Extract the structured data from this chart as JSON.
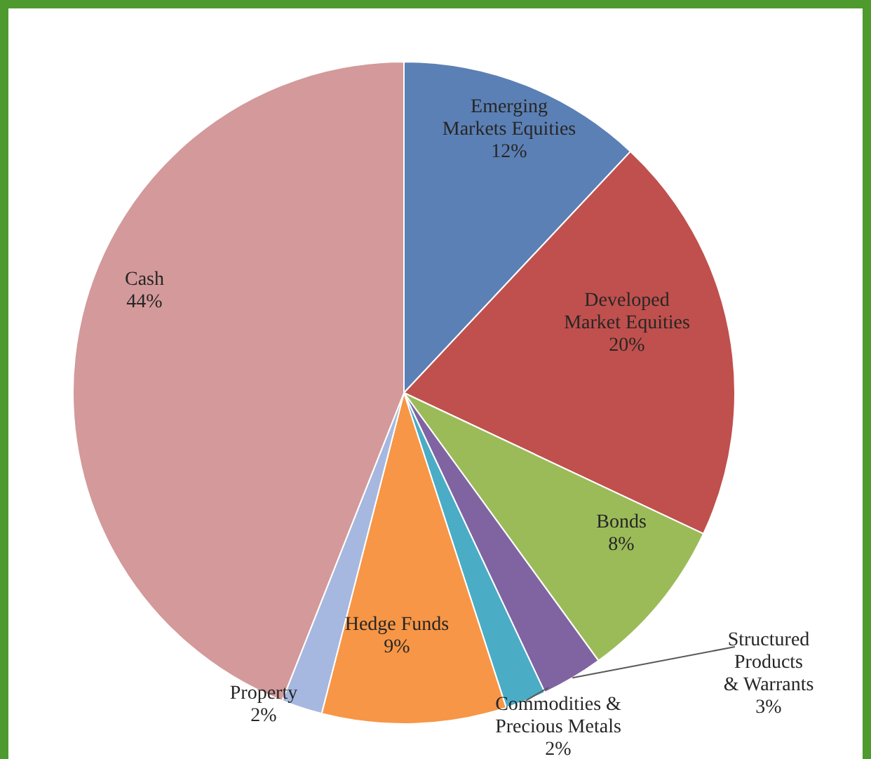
{
  "chart_data": {
    "type": "pie",
    "categories": [
      "Emerging Markets Equities",
      "Developed Market Equities",
      "Bonds",
      "Structured Products & Warrants",
      "Commodities & Precious Metals",
      "Hedge Funds",
      "Property",
      "Cash"
    ],
    "values": [
      12,
      20,
      8,
      3,
      2,
      9,
      2,
      44
    ],
    "value_labels": [
      "12%",
      "20%",
      "8%",
      "3%",
      "2%",
      "9%",
      "2%",
      "44%"
    ],
    "colors": [
      "#5b80b5",
      "#c0504d",
      "#9bbb59",
      "#8064a2",
      "#4bacc6",
      "#f79646",
      "#a6b8e0",
      "#d4999a"
    ]
  }
}
